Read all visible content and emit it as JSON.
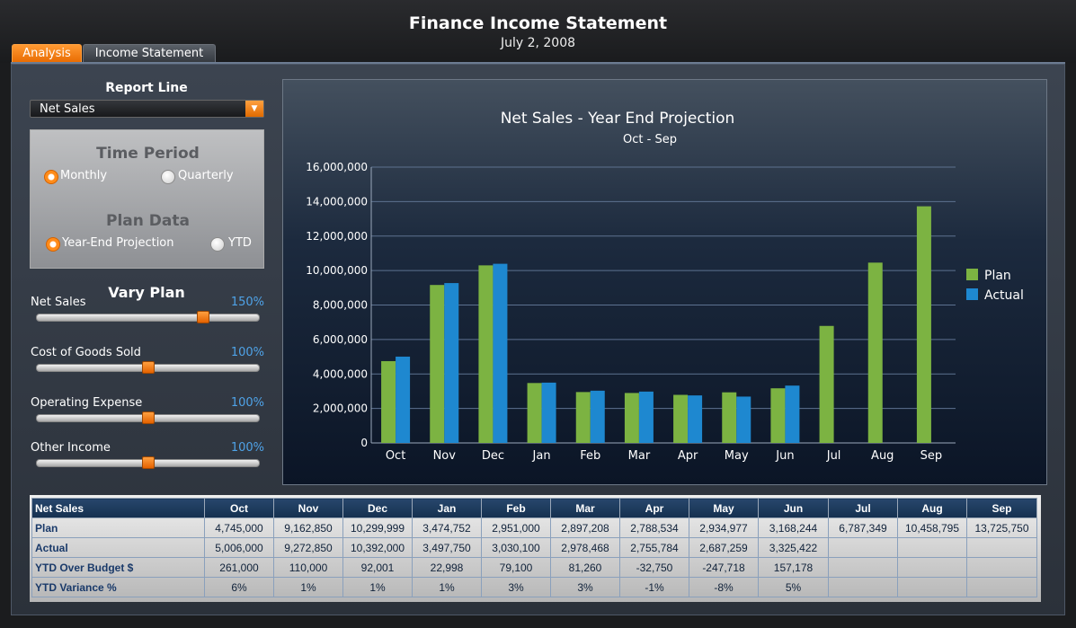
{
  "app": {
    "title": "Finance Income Statement",
    "date": "July 2, 2008"
  },
  "tabs": [
    {
      "label": "Analysis",
      "active": true
    },
    {
      "label": "Income Statement",
      "active": false
    }
  ],
  "report_line": {
    "label": "Report Line",
    "selected": "Net Sales"
  },
  "time_period": {
    "heading": "Time Period",
    "options": [
      "Monthly",
      "Quarterly"
    ],
    "selected": "Monthly"
  },
  "plan_data": {
    "heading": "Plan Data",
    "options": [
      "Year-End Projection",
      "YTD"
    ],
    "selected": "Year-End Projection"
  },
  "vary_plan": {
    "title": "Vary Plan",
    "sliders": [
      {
        "label": "Net Sales",
        "value": "150%",
        "level": 0.75
      },
      {
        "label": "Cost of Goods Sold",
        "value": "100%",
        "level": 0.5
      },
      {
        "label": "Operating Expense",
        "value": "100%",
        "level": 0.5
      },
      {
        "label": "Other Income",
        "value": "100%",
        "level": 0.5
      }
    ]
  },
  "colors": {
    "plan": "#7cb342",
    "actual": "#1e88d0",
    "accent": "#ff8c1a"
  },
  "chart_data": {
    "type": "bar",
    "title": "Net Sales - Year End Projection",
    "subtitle": "Oct - Sep",
    "categories": [
      "Oct",
      "Nov",
      "Dec",
      "Jan",
      "Feb",
      "Mar",
      "Apr",
      "May",
      "Jun",
      "Jul",
      "Aug",
      "Sep"
    ],
    "series": [
      {
        "name": "Plan",
        "values": [
          4745000,
          9162850,
          10299999,
          3474752,
          2951000,
          2897208,
          2788534,
          2934977,
          3168244,
          6787349,
          10458795,
          13725750
        ]
      },
      {
        "name": "Actual",
        "values": [
          5006000,
          9272850,
          10392000,
          3497750,
          3030100,
          2978468,
          2755784,
          2687259,
          3325422,
          null,
          null,
          null
        ]
      }
    ],
    "ylim": [
      0,
      16000000
    ],
    "yticks": [
      "0",
      "2,000,000",
      "4,000,000",
      "6,000,000",
      "8,000,000",
      "10,000,000",
      "12,000,000",
      "14,000,000",
      "16,000,000"
    ],
    "grid": true,
    "legend": "right"
  },
  "table": {
    "corner": "Net Sales",
    "columns": [
      "Oct",
      "Nov",
      "Dec",
      "Jan",
      "Feb",
      "Mar",
      "Apr",
      "May",
      "Jun",
      "Jul",
      "Aug",
      "Sep"
    ],
    "rows": [
      {
        "label": "Plan",
        "cells": [
          "4,745,000",
          "9,162,850",
          "10,299,999",
          "3,474,752",
          "2,951,000",
          "2,897,208",
          "2,788,534",
          "2,934,977",
          "3,168,244",
          "6,787,349",
          "10,458,795",
          "13,725,750"
        ]
      },
      {
        "label": "Actual",
        "cells": [
          "5,006,000",
          "9,272,850",
          "10,392,000",
          "3,497,750",
          "3,030,100",
          "2,978,468",
          "2,755,784",
          "2,687,259",
          "3,325,422",
          "",
          "",
          ""
        ]
      },
      {
        "label": "YTD Over Budget $",
        "cells": [
          "261,000",
          "110,000",
          "92,001",
          "22,998",
          "79,100",
          "81,260",
          "-32,750",
          "-247,718",
          "157,178",
          "",
          "",
          ""
        ]
      },
      {
        "label": "YTD Variance %",
        "cells": [
          "6%",
          "1%",
          "1%",
          "1%",
          "3%",
          "3%",
          "-1%",
          "-8%",
          "5%",
          "",
          "",
          ""
        ]
      }
    ]
  }
}
